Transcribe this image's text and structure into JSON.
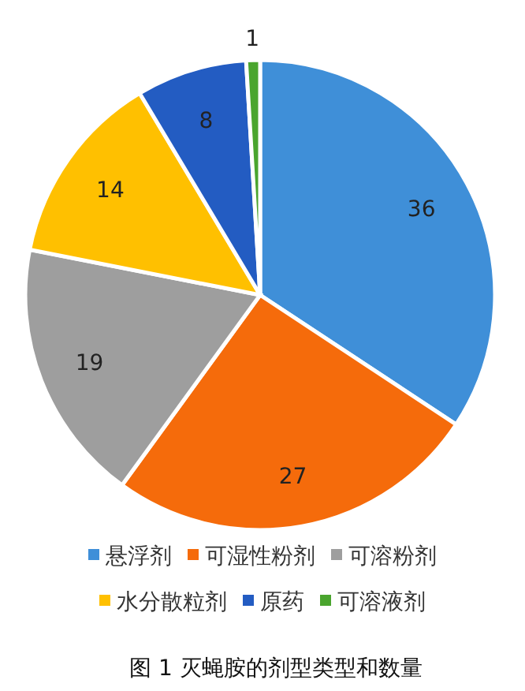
{
  "chart_data": {
    "type": "pie",
    "categories": [
      "悬浮剂",
      "可湿性粉剂",
      "可溶粉剂",
      "水分散粒剂",
      "原药",
      "可溶液剂"
    ],
    "values": [
      36,
      27,
      19,
      14,
      8,
      1
    ],
    "colors": [
      "#3f8fd8",
      "#f56b0b",
      "#9e9e9e",
      "#ffc000",
      "#235cc2",
      "#4aa52e"
    ],
    "data_labels": true,
    "legend": "bottom",
    "annotations": [
      "图 1   灭蝇胺的剂型类型和数量"
    ]
  }
}
